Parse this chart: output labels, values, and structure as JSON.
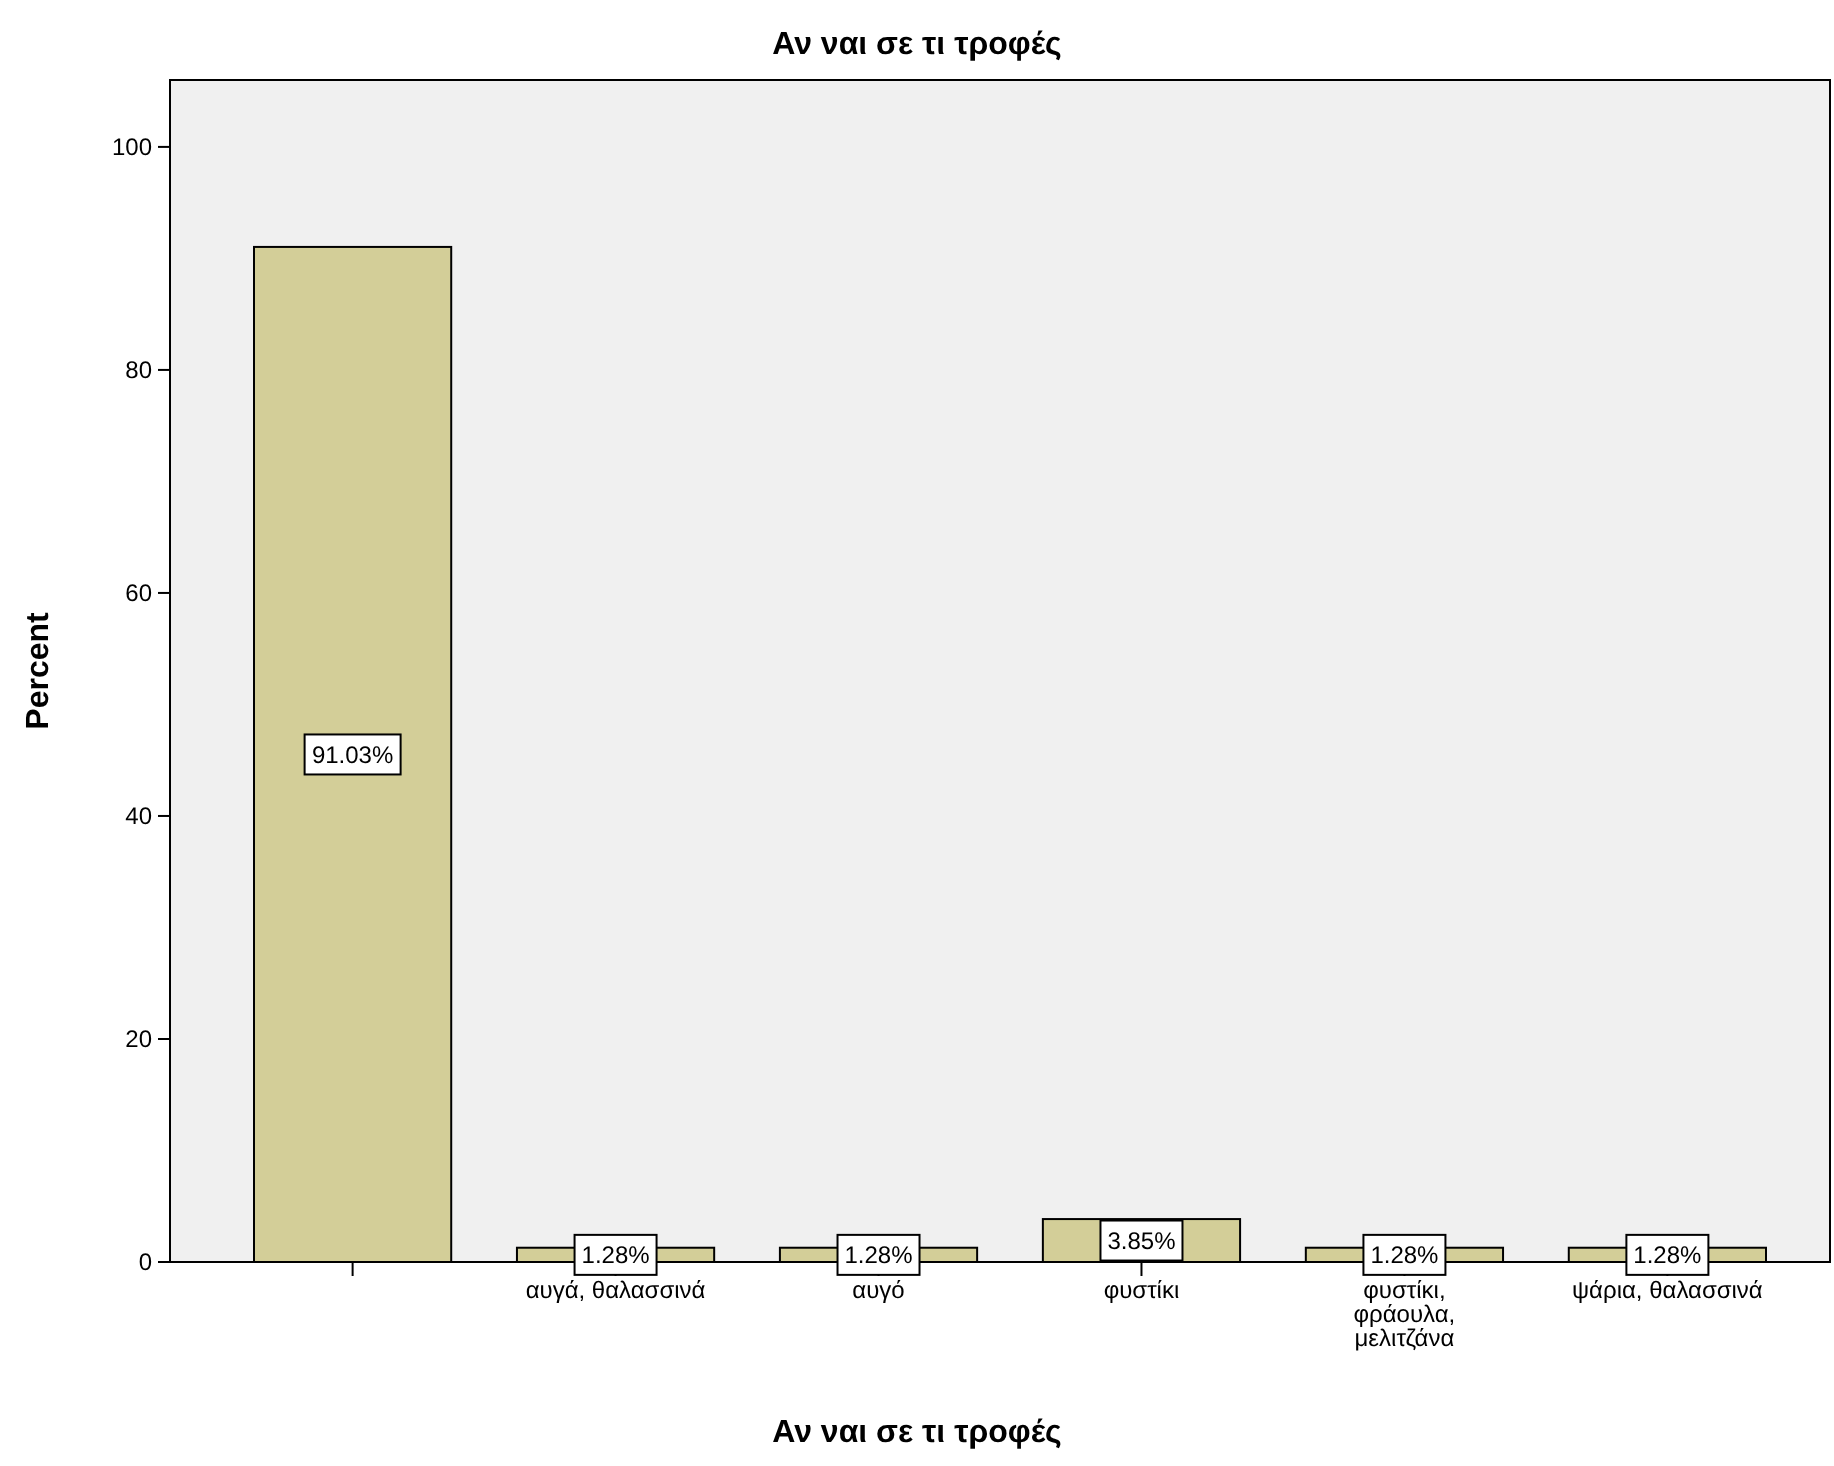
{
  "chart_data": {
    "type": "bar",
    "title": "Αν ναι σε τι τροφές",
    "xlabel": "Αν ναι σε τι τροφές",
    "ylabel": "Percent",
    "categories": [
      null,
      "αυγά, θαλασσινά",
      "αυγό",
      "φυστίκι",
      "φυστίκι, φράουλα, μελιτζάνα",
      "ψάρια, θαλασσινά"
    ],
    "values": [
      91.03,
      1.28,
      1.28,
      3.85,
      1.28,
      1.28
    ],
    "value_labels": [
      "91.03%",
      "1.28%",
      "1.28%",
      "3.85%",
      "1.28%",
      "1.28%"
    ],
    "color": "#d3ce98",
    "ylim": [
      0,
      106
    ],
    "yticks": [
      0,
      20,
      40,
      60,
      80,
      100
    ],
    "grid": false
  }
}
